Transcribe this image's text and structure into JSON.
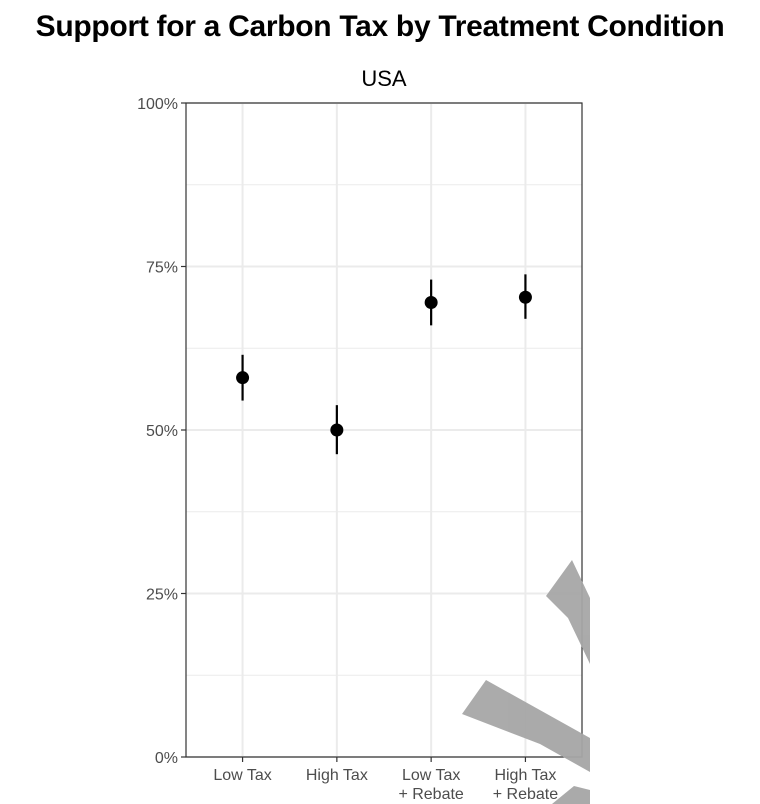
{
  "title": "Support for a Carbon Tax by Treatment Condition",
  "chart_data": {
    "type": "scatter",
    "panel_title": "USA",
    "categories": [
      "Low Tax",
      "High Tax",
      "Low Tax\n+ Rebate",
      "High Tax\n+ Rebate"
    ],
    "series": [
      {
        "values": [
          58,
          50,
          69.5,
          70.3
        ],
        "ci_low": [
          54.5,
          46.3,
          66,
          67
        ],
        "ci_high": [
          61.5,
          53.8,
          73,
          73.8
        ]
      }
    ],
    "ylim": [
      0,
      100
    ],
    "yticks": [
      "0%",
      "25%",
      "50%",
      "75%",
      "100%"
    ],
    "ytick_values": [
      0,
      25,
      50,
      75,
      100
    ],
    "grid": true,
    "point_color": "#000000",
    "grid_color": "#ebebeb",
    "watermark": "(partial watermark strokes, no legible text)"
  }
}
